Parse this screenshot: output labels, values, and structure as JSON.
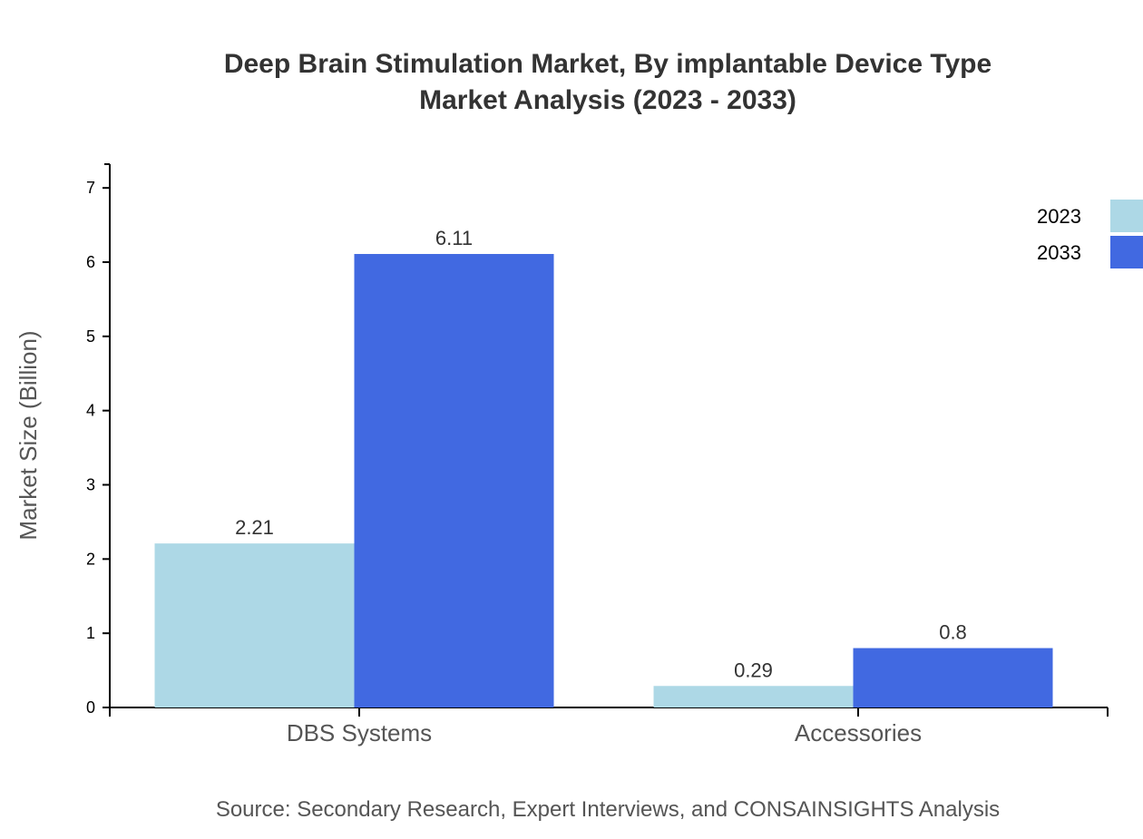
{
  "chart_data": {
    "type": "bar",
    "title": "Deep Brain Stimulation Market, By implantable Device Type",
    "subtitle": "Market Analysis (2023 - 2033)",
    "xlabel": "",
    "ylabel": "Market Size (Billion)",
    "categories": [
      "DBS Systems",
      "Accessories"
    ],
    "series": [
      {
        "name": "2023",
        "values": [
          2.21,
          0.29
        ],
        "color": "#ADD8E6"
      },
      {
        "name": "2033",
        "values": [
          6.11,
          0.8
        ],
        "color": "#4169E1"
      }
    ],
    "data_labels": [
      [
        "2.21",
        "0.29"
      ],
      [
        "6.11",
        "0.8"
      ]
    ],
    "ylim": [
      0,
      7.32
    ],
    "yticks": [
      "0",
      "1",
      "2",
      "3",
      "4",
      "5",
      "6",
      "7"
    ],
    "grid": false,
    "legend_position": "top-right"
  },
  "source": "Source: Secondary Research, Expert Interviews, and CONSAINSIGHTS Analysis"
}
